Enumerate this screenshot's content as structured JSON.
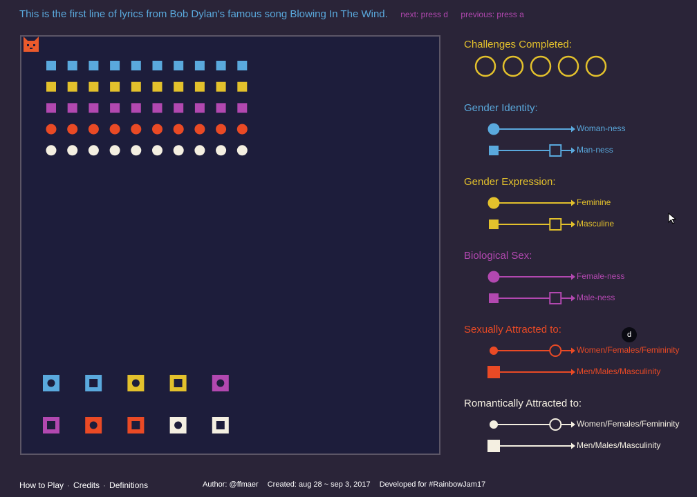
{
  "header": {
    "lyric": "This is the first line of lyrics from Bob Dylan's famous song Blowing In The Wind.",
    "next_hint": "next: press d",
    "previous_hint": "previous: press a"
  },
  "colors": {
    "blue": "#5aa9dd",
    "yellow": "#e3c12c",
    "purple": "#b248b0",
    "red": "#ea4a25",
    "white": "#f4efe1",
    "board_bg": "#1d1d3b",
    "page_bg": "#2a2438"
  },
  "board": {
    "player_icon": "cat-icon",
    "grid_rows": [
      {
        "color": "blue",
        "shape": "square",
        "count": 10
      },
      {
        "color": "yellow",
        "shape": "square",
        "count": 10
      },
      {
        "color": "purple",
        "shape": "square",
        "count": 10
      },
      {
        "color": "red",
        "shape": "circle",
        "count": 10
      },
      {
        "color": "white",
        "shape": "circle",
        "count": 10
      }
    ],
    "tokens": [
      {
        "color": "blue",
        "inner": "circle"
      },
      {
        "color": "blue",
        "inner": "square"
      },
      {
        "color": "yellow",
        "inner": "circle"
      },
      {
        "color": "yellow",
        "inner": "square"
      },
      {
        "color": "purple",
        "inner": "circle"
      },
      {
        "color": "purple",
        "inner": "square"
      },
      {
        "color": "red",
        "inner": "circle"
      },
      {
        "color": "red",
        "inner": "square"
      },
      {
        "color": "white",
        "inner": "circle"
      },
      {
        "color": "white",
        "inner": "square"
      }
    ]
  },
  "challenges": {
    "title": "Challenges Completed:",
    "total": 5,
    "completed": 0
  },
  "sections": [
    {
      "title": "Gender Identity:",
      "color": "blue",
      "rows": [
        {
          "label": "Woman-ness",
          "start": "circle",
          "marker": "none",
          "marker_pos": 0
        },
        {
          "label": "Man-ness",
          "start": "square",
          "marker": "square",
          "marker_pos": 0.79
        }
      ]
    },
    {
      "title": "Gender Expression:",
      "color": "yellow",
      "rows": [
        {
          "label": "Feminine",
          "start": "circle",
          "marker": "none",
          "marker_pos": 0
        },
        {
          "label": "Masculine",
          "start": "square",
          "marker": "square",
          "marker_pos": 0.79
        }
      ]
    },
    {
      "title": "Biological Sex:",
      "color": "purple",
      "rows": [
        {
          "label": "Female-ness",
          "start": "circle",
          "marker": "none",
          "marker_pos": 0
        },
        {
          "label": "Male-ness",
          "start": "square",
          "marker": "square",
          "marker_pos": 0.79
        }
      ]
    },
    {
      "title": "Sexually Attracted to:",
      "color": "red",
      "rows": [
        {
          "label": "Women/Females/Femininity",
          "start": "circle-small",
          "marker": "circle",
          "marker_pos": 0.79
        },
        {
          "label": "Men/Males/Masculinity",
          "start": "square-large",
          "marker": "none",
          "marker_pos": 0
        }
      ]
    },
    {
      "title": "Romantically Attracted to:",
      "color": "white",
      "rows": [
        {
          "label": "Women/Females/Femininity",
          "start": "circle-small",
          "marker": "circle",
          "marker_pos": 0.79
        },
        {
          "label": "Men/Males/Masculinity",
          "start": "square-large",
          "marker": "none",
          "marker_pos": 0
        }
      ]
    }
  ],
  "overlay": {
    "key_hint": "d"
  },
  "footer": {
    "how_to_play": "How to Play",
    "credits": "Credits",
    "definitions": "Definitions",
    "separator": "·",
    "author": "Author: @ffmaer",
    "created": "Created: aug 28 ~ sep 3, 2017",
    "developed": "Developed for #RainbowJam17"
  }
}
